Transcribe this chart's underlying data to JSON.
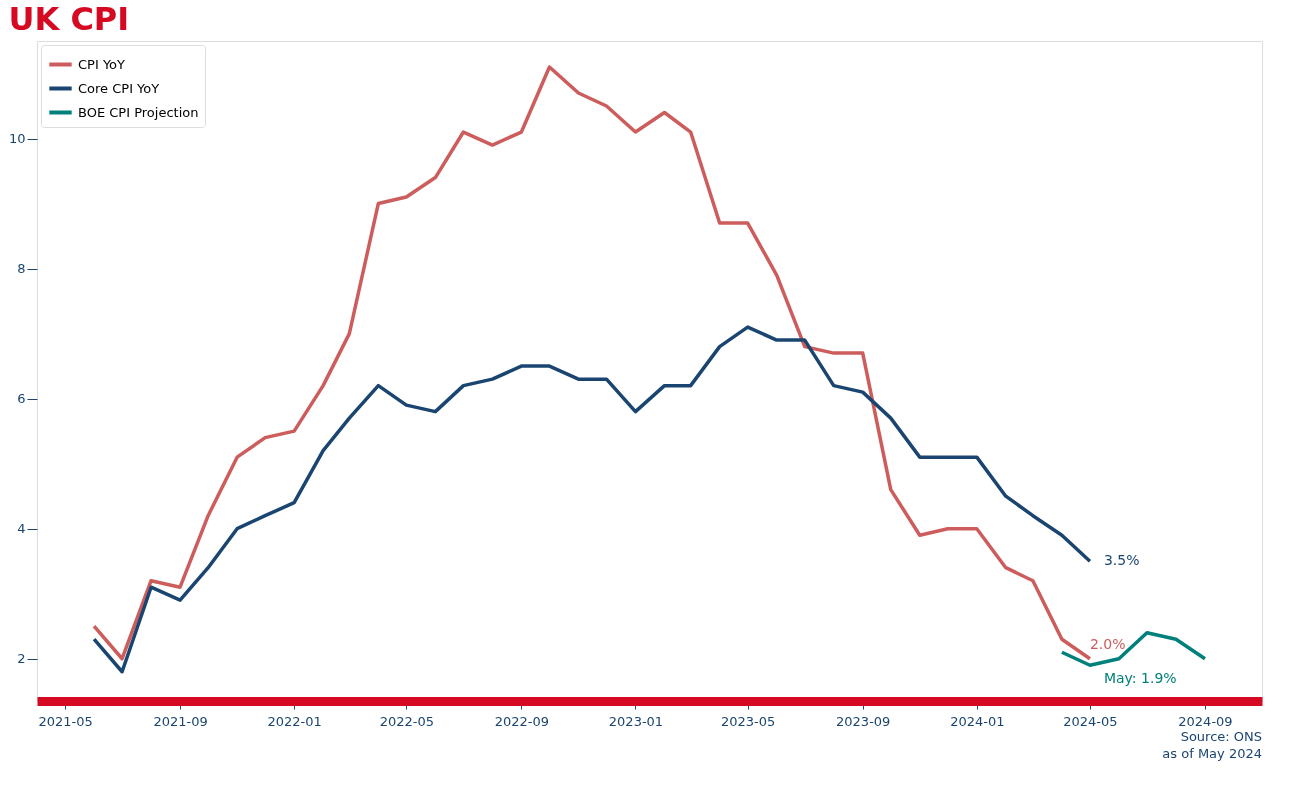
{
  "chart_data": {
    "type": "line",
    "title": "UK CPI",
    "x": [
      "2021-06",
      "2021-07",
      "2021-08",
      "2021-09",
      "2021-10",
      "2021-11",
      "2021-12",
      "2022-01",
      "2022-02",
      "2022-03",
      "2022-04",
      "2022-05",
      "2022-06",
      "2022-07",
      "2022-08",
      "2022-09",
      "2022-10",
      "2022-11",
      "2022-12",
      "2023-01",
      "2023-02",
      "2023-03",
      "2023-04",
      "2023-05",
      "2023-06",
      "2023-07",
      "2023-08",
      "2023-09",
      "2023-10",
      "2023-11",
      "2023-12",
      "2024-01",
      "2024-02",
      "2024-03",
      "2024-04",
      "2024-05"
    ],
    "series": [
      {
        "name": "CPI YoY",
        "color": "#cd5c5c",
        "values": [
          2.5,
          2.0,
          3.2,
          3.1,
          4.2,
          5.1,
          5.4,
          5.5,
          6.2,
          7.0,
          9.0,
          9.1,
          9.4,
          10.1,
          9.9,
          10.1,
          11.1,
          10.7,
          10.5,
          10.1,
          10.4,
          10.1,
          8.7,
          8.7,
          7.9,
          6.8,
          6.7,
          6.7,
          4.6,
          3.9,
          4.0,
          4.0,
          3.4,
          3.2,
          2.3,
          2.0
        ]
      },
      {
        "name": "Core CPI YoY",
        "color": "#1a4570",
        "values": [
          2.3,
          1.8,
          3.1,
          2.9,
          3.4,
          4.0,
          4.2,
          4.4,
          5.2,
          5.7,
          6.2,
          5.9,
          5.8,
          6.2,
          6.3,
          6.5,
          6.5,
          6.3,
          6.3,
          5.8,
          6.2,
          6.2,
          6.8,
          7.1,
          6.9,
          6.9,
          6.2,
          6.1,
          5.7,
          5.1,
          5.1,
          5.1,
          4.5,
          4.2,
          3.9,
          3.5
        ]
      },
      {
        "name": "BOE CPI Projection",
        "color": "#00807a",
        "x": [
          "2024-04",
          "2024-05",
          "2024-06",
          "2024-07",
          "2024-08",
          "2024-09"
        ],
        "values": [
          2.1,
          1.9,
          2.0,
          2.4,
          2.3,
          2.0
        ]
      }
    ],
    "xlim": [
      "2021-04",
      "2024-11"
    ],
    "xticks": [
      "2021-05",
      "2021-09",
      "2022-01",
      "2022-05",
      "2022-09",
      "2023-01",
      "2023-05",
      "2023-09",
      "2024-01",
      "2024-05",
      "2024-09"
    ],
    "ylim": [
      1.35,
      11.5
    ],
    "yticks": [
      2,
      4,
      6,
      8,
      10
    ],
    "grid": false,
    "legend": "top left",
    "line_style": "solid",
    "annotations": [
      {
        "text": "3.5%",
        "x": "2024-05",
        "y": 3.5
      },
      {
        "text": "2.0%",
        "x": "2024-05",
        "y": 2.0
      },
      {
        "text": "May: 1.9%",
        "x": "2024-05",
        "y": 1.9
      },
      "Source: ONS",
      "as of May 2024"
    ]
  }
}
